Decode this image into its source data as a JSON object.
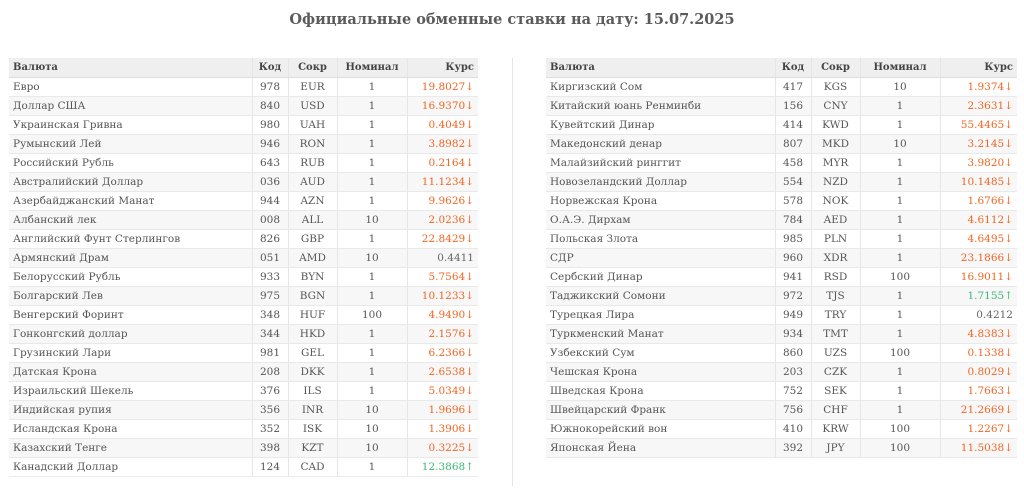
{
  "title": "Официальные обменные ставки на дату: 15.07.2025",
  "headers": {
    "name": "Валюта",
    "code": "Код",
    "abbr": "Сокр",
    "nominal": "Номинал",
    "rate": "Курс"
  },
  "colors": {
    "down": "#f26522",
    "up": "#3cb878",
    "neutral": "#666666"
  },
  "left_rows": [
    {
      "name": "Евро",
      "code": "978",
      "abbr": "EUR",
      "nominal": "1",
      "rate": "19.8027",
      "trend": "down"
    },
    {
      "name": "Доллар США",
      "code": "840",
      "abbr": "USD",
      "nominal": "1",
      "rate": "16.9370",
      "trend": "down"
    },
    {
      "name": "Украинская Гривна",
      "code": "980",
      "abbr": "UAH",
      "nominal": "1",
      "rate": "0.4049",
      "trend": "down"
    },
    {
      "name": "Румынский Лей",
      "code": "946",
      "abbr": "RON",
      "nominal": "1",
      "rate": "3.8982",
      "trend": "down"
    },
    {
      "name": "Российский Рубль",
      "code": "643",
      "abbr": "RUB",
      "nominal": "1",
      "rate": "0.2164",
      "trend": "down"
    },
    {
      "name": "Австралийский Доллар",
      "code": "036",
      "abbr": "AUD",
      "nominal": "1",
      "rate": "11.1234",
      "trend": "down"
    },
    {
      "name": "Азербайджанский Манат",
      "code": "944",
      "abbr": "AZN",
      "nominal": "1",
      "rate": "9.9626",
      "trend": "down"
    },
    {
      "name": "Албанский лек",
      "code": "008",
      "abbr": "ALL",
      "nominal": "10",
      "rate": "2.0236",
      "trend": "down"
    },
    {
      "name": "Английский Фунт Стерлингов",
      "code": "826",
      "abbr": "GBP",
      "nominal": "1",
      "rate": "22.8429",
      "trend": "down"
    },
    {
      "name": "Армянский Драм",
      "code": "051",
      "abbr": "AMD",
      "nominal": "10",
      "rate": "0.4411",
      "trend": "none"
    },
    {
      "name": "Белорусский Рубль",
      "code": "933",
      "abbr": "BYN",
      "nominal": "1",
      "rate": "5.7564",
      "trend": "down"
    },
    {
      "name": "Болгарский Лев",
      "code": "975",
      "abbr": "BGN",
      "nominal": "1",
      "rate": "10.1233",
      "trend": "down"
    },
    {
      "name": "Венгерский Форинт",
      "code": "348",
      "abbr": "HUF",
      "nominal": "100",
      "rate": "4.9490",
      "trend": "down"
    },
    {
      "name": "Гонконгский доллар",
      "code": "344",
      "abbr": "HKD",
      "nominal": "1",
      "rate": "2.1576",
      "trend": "down"
    },
    {
      "name": "Грузинский Лари",
      "code": "981",
      "abbr": "GEL",
      "nominal": "1",
      "rate": "6.2366",
      "trend": "down"
    },
    {
      "name": "Датская Крона",
      "code": "208",
      "abbr": "DKK",
      "nominal": "1",
      "rate": "2.6538",
      "trend": "down"
    },
    {
      "name": "Израильский Шекель",
      "code": "376",
      "abbr": "ILS",
      "nominal": "1",
      "rate": "5.0349",
      "trend": "down"
    },
    {
      "name": "Индийская рупия",
      "code": "356",
      "abbr": "INR",
      "nominal": "10",
      "rate": "1.9696",
      "trend": "down"
    },
    {
      "name": "Исландская Крона",
      "code": "352",
      "abbr": "ISK",
      "nominal": "10",
      "rate": "1.3906",
      "trend": "down"
    },
    {
      "name": "Казахский Тенге",
      "code": "398",
      "abbr": "KZT",
      "nominal": "10",
      "rate": "0.3225",
      "trend": "down"
    },
    {
      "name": "Канадский Доллар",
      "code": "124",
      "abbr": "CAD",
      "nominal": "1",
      "rate": "12.3868",
      "trend": "up"
    }
  ],
  "right_rows": [
    {
      "name": "Киргизский Сом",
      "code": "417",
      "abbr": "KGS",
      "nominal": "10",
      "rate": "1.9374",
      "trend": "down"
    },
    {
      "name": "Китайский юань Ренминби",
      "code": "156",
      "abbr": "CNY",
      "nominal": "1",
      "rate": "2.3631",
      "trend": "down"
    },
    {
      "name": "Кувейтский Динар",
      "code": "414",
      "abbr": "KWD",
      "nominal": "1",
      "rate": "55.4465",
      "trend": "down"
    },
    {
      "name": "Македонский денар",
      "code": "807",
      "abbr": "MKD",
      "nominal": "10",
      "rate": "3.2145",
      "trend": "down"
    },
    {
      "name": "Малайзийский ринггит",
      "code": "458",
      "abbr": "MYR",
      "nominal": "1",
      "rate": "3.9820",
      "trend": "down"
    },
    {
      "name": "Новозеландский Доллар",
      "code": "554",
      "abbr": "NZD",
      "nominal": "1",
      "rate": "10.1485",
      "trend": "down"
    },
    {
      "name": "Норвежская Крона",
      "code": "578",
      "abbr": "NOK",
      "nominal": "1",
      "rate": "1.6766",
      "trend": "down"
    },
    {
      "name": "О.А.Э. Дирхам",
      "code": "784",
      "abbr": "AED",
      "nominal": "1",
      "rate": "4.6112",
      "trend": "down"
    },
    {
      "name": "Польская Злота",
      "code": "985",
      "abbr": "PLN",
      "nominal": "1",
      "rate": "4.6495",
      "trend": "down"
    },
    {
      "name": "СДР",
      "code": "960",
      "abbr": "XDR",
      "nominal": "1",
      "rate": "23.1866",
      "trend": "down"
    },
    {
      "name": "Сербский Динар",
      "code": "941",
      "abbr": "RSD",
      "nominal": "100",
      "rate": "16.9011",
      "trend": "down"
    },
    {
      "name": "Таджикский Сомони",
      "code": "972",
      "abbr": "TJS",
      "nominal": "1",
      "rate": "1.7155",
      "trend": "up"
    },
    {
      "name": "Турецкая Лира",
      "code": "949",
      "abbr": "TRY",
      "nominal": "1",
      "rate": "0.4212",
      "trend": "none"
    },
    {
      "name": "Туркменский Манат",
      "code": "934",
      "abbr": "TMT",
      "nominal": "1",
      "rate": "4.8383",
      "trend": "down"
    },
    {
      "name": "Узбекский Сум",
      "code": "860",
      "abbr": "UZS",
      "nominal": "100",
      "rate": "0.1338",
      "trend": "down"
    },
    {
      "name": "Чешская Крона",
      "code": "203",
      "abbr": "CZK",
      "nominal": "1",
      "rate": "0.8029",
      "trend": "down"
    },
    {
      "name": "Шведская Крона",
      "code": "752",
      "abbr": "SEK",
      "nominal": "1",
      "rate": "1.7663",
      "trend": "down"
    },
    {
      "name": "Швейцарский Франк",
      "code": "756",
      "abbr": "CHF",
      "nominal": "1",
      "rate": "21.2669",
      "trend": "down"
    },
    {
      "name": "Южнокорейский вон",
      "code": "410",
      "abbr": "KRW",
      "nominal": "100",
      "rate": "1.2267",
      "trend": "down"
    },
    {
      "name": "Японская Йена",
      "code": "392",
      "abbr": "JPY",
      "nominal": "100",
      "rate": "11.5038",
      "trend": "down"
    }
  ]
}
